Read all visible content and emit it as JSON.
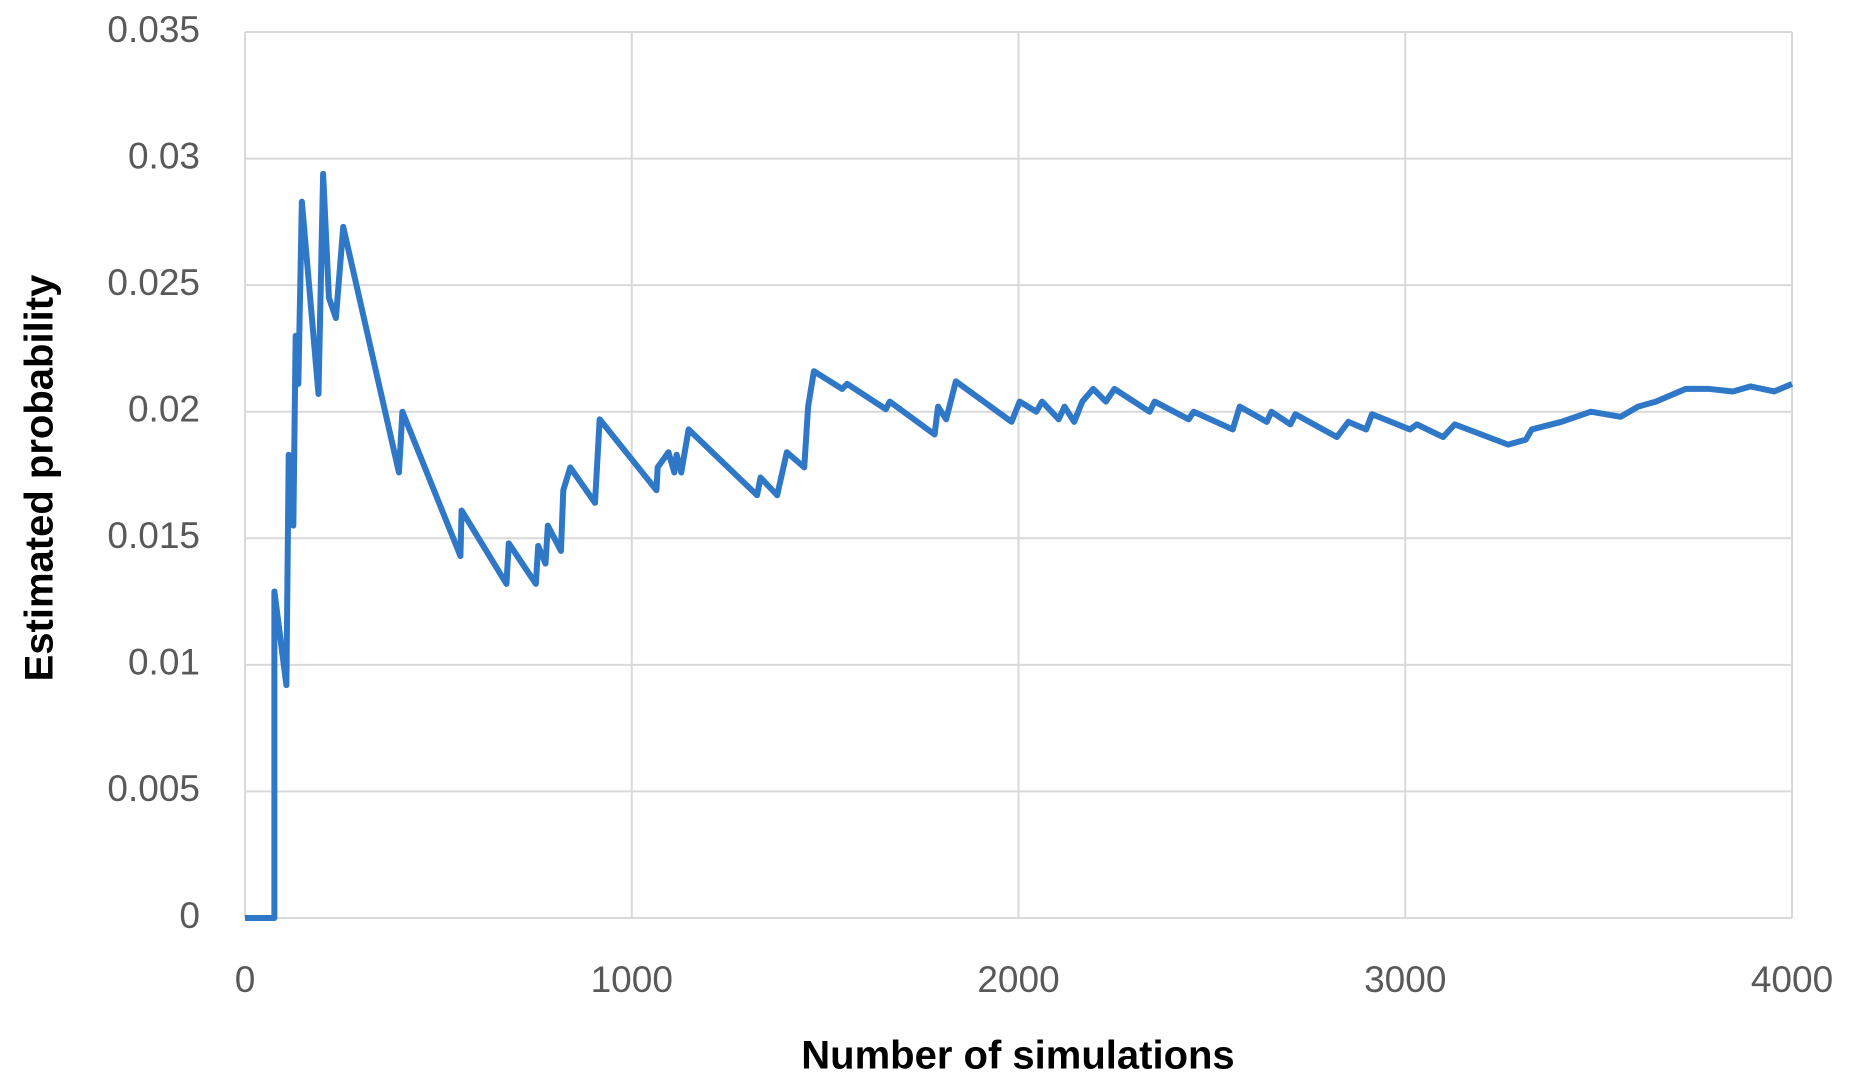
{
  "chart_data": {
    "type": "line",
    "x_label": "Number of simulations",
    "y_label": "Estimated probability",
    "xlim": [
      0,
      4000
    ],
    "xticks": [
      0,
      1000,
      2000,
      3000,
      4000
    ],
    "ylim": [
      0,
      0.035
    ],
    "yticks": [
      0,
      0.005,
      0.01,
      0.015,
      0.02,
      0.025,
      0.03,
      0.035
    ],
    "grid": true,
    "series": [
      {
        "color": "#2f78c8",
        "x": [
          0,
          76,
          76,
          107,
          113,
          125,
          131,
          138,
          147,
          190,
          202,
          217,
          235,
          254,
          398,
          407,
          557,
          560,
          676,
          682,
          752,
          758,
          777,
          783,
          817,
          823,
          841,
          905,
          917,
          1064,
          1067,
          1095,
          1110,
          1116,
          1128,
          1147,
          1324,
          1333,
          1376,
          1401,
          1446,
          1456,
          1471,
          1544,
          1557,
          1657,
          1667,
          1783,
          1792,
          1813,
          1838,
          1982,
          2003,
          2046,
          2061,
          2104,
          2119,
          2144,
          2165,
          2193,
          2226,
          2248,
          2339,
          2352,
          2440,
          2453,
          2554,
          2572,
          2642,
          2654,
          2703,
          2716,
          2823,
          2853,
          2899,
          2914,
          3012,
          3030,
          3098,
          3128,
          3266,
          3312,
          3327,
          3404,
          3480,
          3557,
          3602,
          3648,
          3725,
          3786,
          3847,
          3893,
          3954,
          4000
        ],
        "values": [
          0,
          0,
          0.0129,
          0.0092,
          0.0183,
          0.0155,
          0.023,
          0.0211,
          0.0283,
          0.0207,
          0.0294,
          0.0245,
          0.0237,
          0.0273,
          0.0176,
          0.02,
          0.0143,
          0.0161,
          0.0132,
          0.0148,
          0.0132,
          0.0147,
          0.014,
          0.0155,
          0.0145,
          0.0169,
          0.0178,
          0.0164,
          0.0197,
          0.0169,
          0.0178,
          0.0184,
          0.0176,
          0.0183,
          0.0176,
          0.0193,
          0.0167,
          0.0174,
          0.0167,
          0.0184,
          0.0178,
          0.0202,
          0.0216,
          0.0209,
          0.0211,
          0.0201,
          0.0204,
          0.0191,
          0.0202,
          0.0197,
          0.0212,
          0.0196,
          0.0204,
          0.02,
          0.0204,
          0.0197,
          0.0202,
          0.0196,
          0.0204,
          0.0209,
          0.0204,
          0.0209,
          0.02,
          0.0204,
          0.0197,
          0.02,
          0.0193,
          0.0202,
          0.0196,
          0.02,
          0.0195,
          0.0199,
          0.019,
          0.0196,
          0.0193,
          0.0199,
          0.0193,
          0.0195,
          0.019,
          0.0195,
          0.0187,
          0.0189,
          0.0193,
          0.0196,
          0.02,
          0.0198,
          0.0202,
          0.0204,
          0.0209,
          0.0209,
          0.0208,
          0.021,
          0.0208,
          0.0211
        ]
      }
    ]
  }
}
